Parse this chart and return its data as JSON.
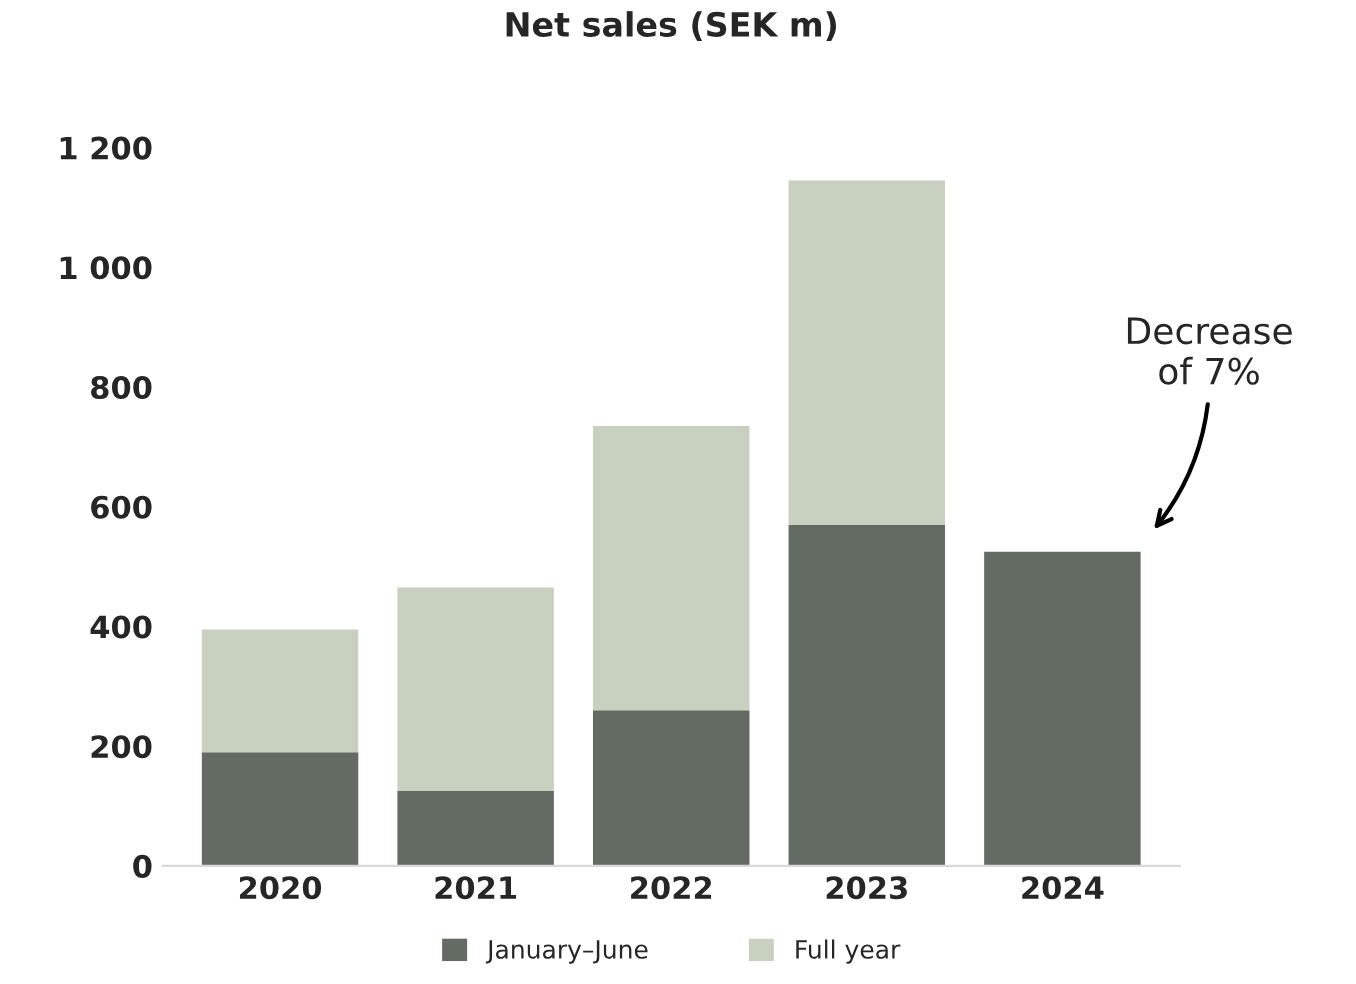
{
  "chart_data": {
    "type": "bar",
    "title": "Net sales (SEK m)",
    "stacked": true,
    "categories": [
      "2020",
      "2021",
      "2022",
      "2023",
      "2024"
    ],
    "series": [
      {
        "name": "January–June",
        "color": "#636b62",
        "values": [
          190,
          125,
          260,
          570,
          525
        ]
      },
      {
        "name": "Full year",
        "color": "#c8d0bf",
        "values": [
          205,
          340,
          475,
          575,
          null
        ]
      }
    ],
    "ylim": [
      0,
      1200
    ],
    "yticks": [
      0,
      {
        "value": 200,
        "label": "200"
      },
      {
        "value": 400,
        "label": "400"
      },
      {
        "value": 600,
        "label": "600"
      },
      {
        "value": 800,
        "label": "800"
      },
      {
        "value": 1000,
        "label": "1 000"
      },
      {
        "value": 1200,
        "label": "1 200"
      }
    ],
    "annotations": [
      "Decrease\nof 7%"
    ],
    "legend": "bottom",
    "grid": false
  }
}
